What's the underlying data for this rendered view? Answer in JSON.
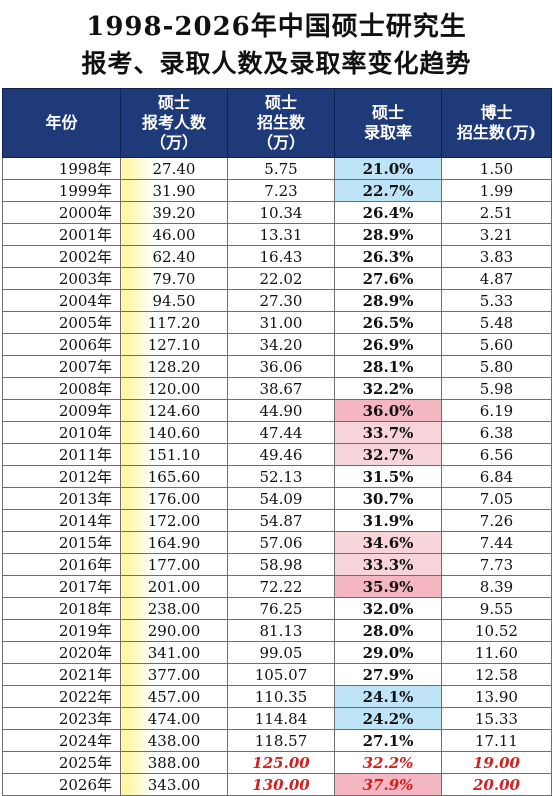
{
  "title_line1": "1998-2026年中国硕士研究生",
  "title_line2": "报考、录取人数及录取率变化趋势",
  "headers": {
    "year": "年份",
    "applicants": [
      "硕士",
      "报考人数",
      "（万）"
    ],
    "enrolled": [
      "硕士",
      "招生数",
      "（万）"
    ],
    "rate": [
      "硕士",
      "录取率"
    ],
    "phd": [
      "博士",
      "招生数(万)"
    ]
  },
  "colors": {
    "header_bg": "#1f3a78",
    "highlight_blue": "#bfe3f7",
    "highlight_pink": "#f7d4da",
    "highlight_pink_strong": "#f4b6c0",
    "projection_red": "#d41f1f",
    "applicant_yellow": "#fff6a8"
  },
  "rows": [
    {
      "year": "1998年",
      "applicants": "27.40",
      "enrolled": "5.75",
      "rate": "21.0%",
      "phd": "1.50",
      "hl": "blue"
    },
    {
      "year": "1999年",
      "applicants": "31.90",
      "enrolled": "7.23",
      "rate": "22.7%",
      "phd": "1.99",
      "hl": "blue"
    },
    {
      "year": "2000年",
      "applicants": "39.20",
      "enrolled": "10.34",
      "rate": "26.4%",
      "phd": "2.51",
      "hl": ""
    },
    {
      "year": "2001年",
      "applicants": "46.00",
      "enrolled": "13.31",
      "rate": "28.9%",
      "phd": "3.21",
      "hl": ""
    },
    {
      "year": "2002年",
      "applicants": "62.40",
      "enrolled": "16.43",
      "rate": "26.3%",
      "phd": "3.83",
      "hl": ""
    },
    {
      "year": "2003年",
      "applicants": "79.70",
      "enrolled": "22.02",
      "rate": "27.6%",
      "phd": "4.87",
      "hl": ""
    },
    {
      "year": "2004年",
      "applicants": "94.50",
      "enrolled": "27.30",
      "rate": "28.9%",
      "phd": "5.33",
      "hl": ""
    },
    {
      "year": "2005年",
      "applicants": "117.20",
      "enrolled": "31.00",
      "rate": "26.5%",
      "phd": "5.48",
      "hl": ""
    },
    {
      "year": "2006年",
      "applicants": "127.10",
      "enrolled": "34.20",
      "rate": "26.9%",
      "phd": "5.60",
      "hl": ""
    },
    {
      "year": "2007年",
      "applicants": "128.20",
      "enrolled": "36.06",
      "rate": "28.1%",
      "phd": "5.80",
      "hl": ""
    },
    {
      "year": "2008年",
      "applicants": "120.00",
      "enrolled": "38.67",
      "rate": "32.2%",
      "phd": "5.98",
      "hl": ""
    },
    {
      "year": "2009年",
      "applicants": "124.60",
      "enrolled": "44.90",
      "rate": "36.0%",
      "phd": "6.19",
      "hl": "pink2"
    },
    {
      "year": "2010年",
      "applicants": "140.60",
      "enrolled": "47.44",
      "rate": "33.7%",
      "phd": "6.38",
      "hl": "pink"
    },
    {
      "year": "2011年",
      "applicants": "151.10",
      "enrolled": "49.46",
      "rate": "32.7%",
      "phd": "6.56",
      "hl": "pink"
    },
    {
      "year": "2012年",
      "applicants": "165.60",
      "enrolled": "52.13",
      "rate": "31.5%",
      "phd": "6.84",
      "hl": ""
    },
    {
      "year": "2013年",
      "applicants": "176.00",
      "enrolled": "54.09",
      "rate": "30.7%",
      "phd": "7.05",
      "hl": ""
    },
    {
      "year": "2014年",
      "applicants": "172.00",
      "enrolled": "54.87",
      "rate": "31.9%",
      "phd": "7.26",
      "hl": ""
    },
    {
      "year": "2015年",
      "applicants": "164.90",
      "enrolled": "57.06",
      "rate": "34.6%",
      "phd": "7.44",
      "hl": "pink"
    },
    {
      "year": "2016年",
      "applicants": "177.00",
      "enrolled": "58.98",
      "rate": "33.3%",
      "phd": "7.73",
      "hl": "pink"
    },
    {
      "year": "2017年",
      "applicants": "201.00",
      "enrolled": "72.22",
      "rate": "35.9%",
      "phd": "8.39",
      "hl": "pink2"
    },
    {
      "year": "2018年",
      "applicants": "238.00",
      "enrolled": "76.25",
      "rate": "32.0%",
      "phd": "9.55",
      "hl": ""
    },
    {
      "year": "2019年",
      "applicants": "290.00",
      "enrolled": "81.13",
      "rate": "28.0%",
      "phd": "10.52",
      "hl": ""
    },
    {
      "year": "2020年",
      "applicants": "341.00",
      "enrolled": "99.05",
      "rate": "29.0%",
      "phd": "11.60",
      "hl": ""
    },
    {
      "year": "2021年",
      "applicants": "377.00",
      "enrolled": "105.07",
      "rate": "27.9%",
      "phd": "12.58",
      "hl": ""
    },
    {
      "year": "2022年",
      "applicants": "457.00",
      "enrolled": "110.35",
      "rate": "24.1%",
      "phd": "13.90",
      "hl": "blue"
    },
    {
      "year": "2023年",
      "applicants": "474.00",
      "enrolled": "114.84",
      "rate": "24.2%",
      "phd": "15.33",
      "hl": "blue"
    },
    {
      "year": "2024年",
      "applicants": "438.00",
      "enrolled": "118.57",
      "rate": "27.1%",
      "phd": "17.11",
      "hl": ""
    },
    {
      "year": "2025年",
      "applicants": "388.00",
      "enrolled": "125.00",
      "rate": "32.2%",
      "phd": "19.00",
      "hl": "",
      "projected": true
    },
    {
      "year": "2026年",
      "applicants": "343.00",
      "enrolled": "130.00",
      "rate": "37.9%",
      "phd": "20.00",
      "hl": "pink2",
      "projected": true
    }
  ]
}
